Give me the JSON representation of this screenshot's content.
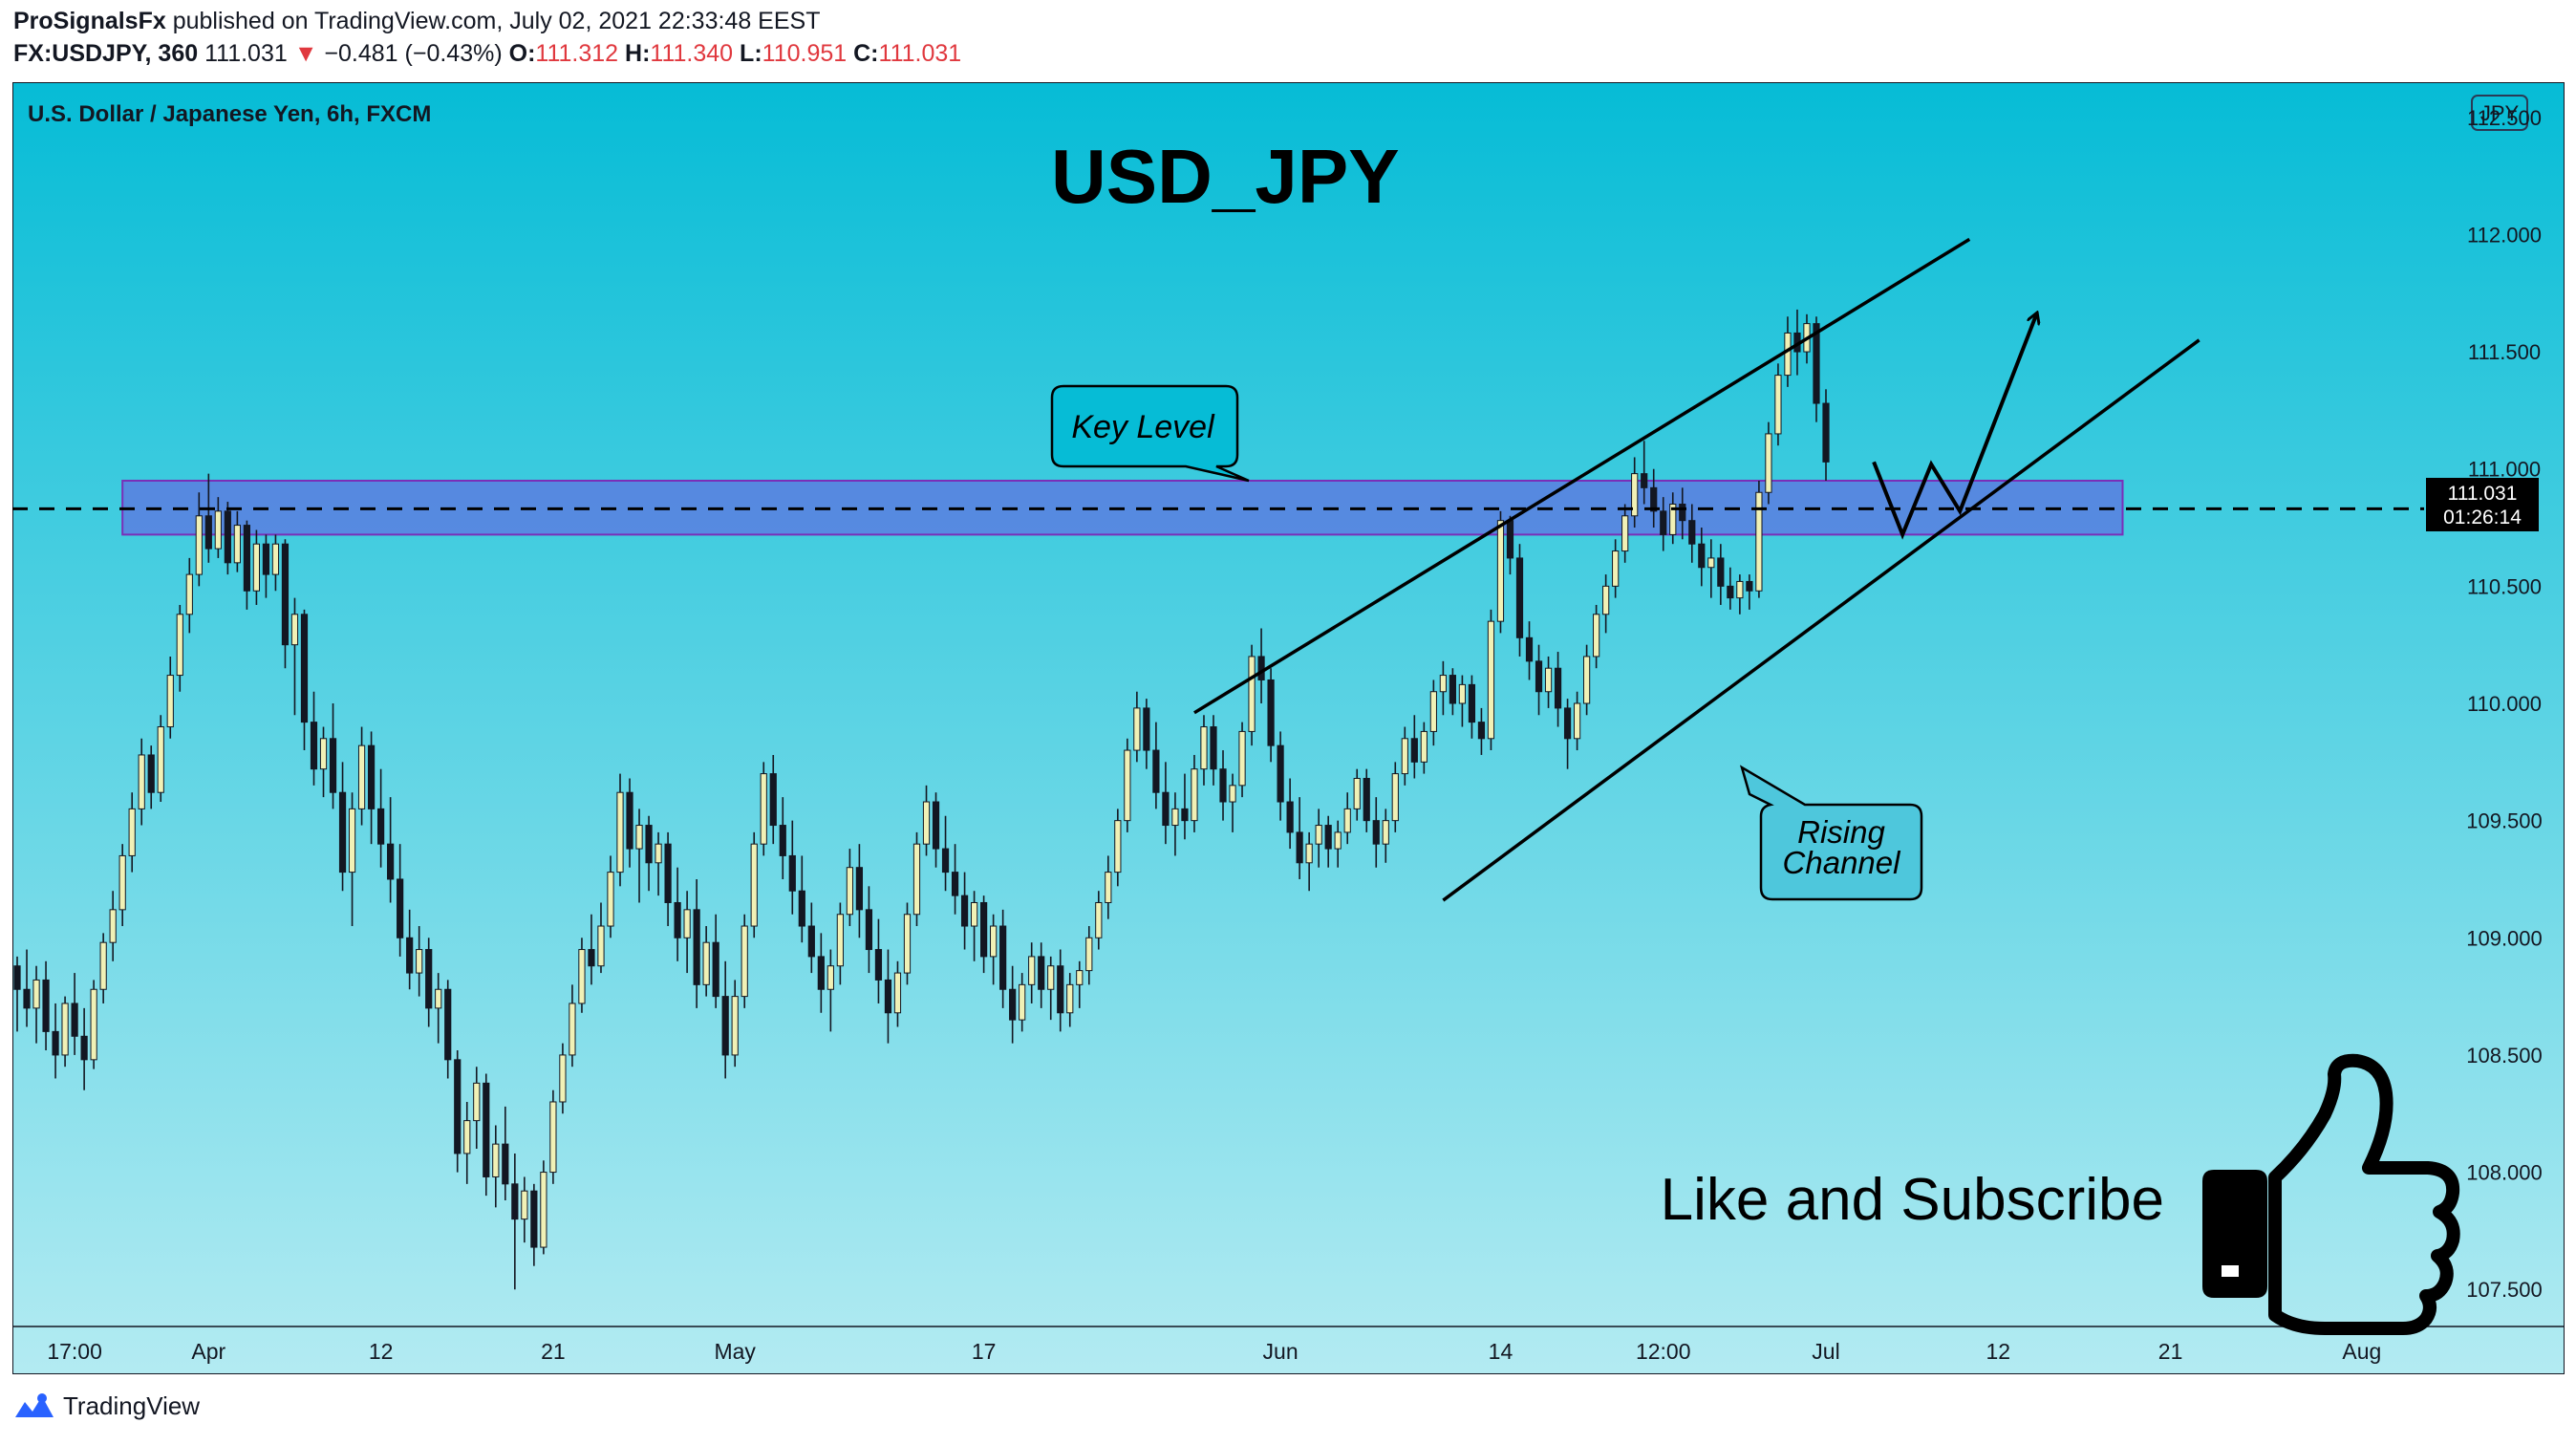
{
  "header": {
    "publisher": "ProSignalsFx",
    "published_text": " published on TradingView.com, July 02, 2021 22:33:48 EEST",
    "symbol": "FX:USDJPY, 360",
    "last": "111.031",
    "change": "−0.481 (−0.43%)",
    "o_label": "O:",
    "o": "111.312",
    "h_label": "H:",
    "h": "111.340",
    "l_label": "L:",
    "l": "110.951",
    "c_label": "C:",
    "c": "111.031"
  },
  "footer": {
    "brand": "TradingView"
  },
  "colors": {
    "bg_top": "#06bcd6",
    "bg_bottom": "#b3ebf2",
    "candle_up": "#f1f1b6",
    "candle_down": "#131722",
    "zone_fill": "#5b7ee0",
    "zone_border": "#7a2fb8"
  },
  "chart_data": {
    "type": "candlestick",
    "symbol_desc": "U.S. Dollar / Japanese Yen, 6h, FXCM",
    "currency_badge": "JPY",
    "title": "USD_JPY",
    "y_ticks": [
      "112.500",
      "112.000",
      "111.500",
      "111.000",
      "110.500",
      "110.000",
      "109.500",
      "109.000",
      "108.500",
      "108.000",
      "107.500"
    ],
    "ylim": [
      107.35,
      112.65
    ],
    "x_ticks": [
      {
        "label": "17:00",
        "i": 6
      },
      {
        "label": "Apr",
        "i": 20
      },
      {
        "label": "12",
        "i": 38
      },
      {
        "label": "21",
        "i": 56
      },
      {
        "label": "May",
        "i": 75
      },
      {
        "label": "17",
        "i": 101
      },
      {
        "label": "Jun",
        "i": 132
      },
      {
        "label": "14",
        "i": 155
      },
      {
        "label": "12:00",
        "i": 172
      },
      {
        "label": "Jul",
        "i": 189
      },
      {
        "label": "12",
        "i": 207
      },
      {
        "label": "21",
        "i": 225
      },
      {
        "label": "Aug",
        "i": 245
      }
    ],
    "x_count": 252,
    "last_price": "111.031",
    "countdown": "01:26:14",
    "key_level": {
      "price": 110.83,
      "from_i": 11,
      "to_i": 220,
      "top": 110.95,
      "bottom": 110.72,
      "label": "Key Level"
    },
    "channel": {
      "upper": [
        [
          123,
          109.96
        ],
        [
          204,
          111.98
        ]
      ],
      "lower": [
        [
          149,
          109.16
        ],
        [
          228,
          111.55
        ]
      ],
      "label": "Rising Channel"
    },
    "projection": [
      [
        194,
        111.03
      ],
      [
        197,
        110.72
      ],
      [
        200,
        111.02
      ],
      [
        203,
        110.82
      ],
      [
        211,
        111.66
      ]
    ],
    "ohlc": [
      [
        108.88,
        108.92,
        108.6,
        108.78
      ],
      [
        108.78,
        108.95,
        108.62,
        108.7
      ],
      [
        108.7,
        108.88,
        108.55,
        108.82
      ],
      [
        108.82,
        108.9,
        108.52,
        108.6
      ],
      [
        108.6,
        108.72,
        108.4,
        108.5
      ],
      [
        108.5,
        108.75,
        108.45,
        108.72
      ],
      [
        108.72,
        108.85,
        108.5,
        108.58
      ],
      [
        108.58,
        108.7,
        108.35,
        108.48
      ],
      [
        108.48,
        108.82,
        108.44,
        108.78
      ],
      [
        108.78,
        109.02,
        108.72,
        108.98
      ],
      [
        108.98,
        109.2,
        108.9,
        109.12
      ],
      [
        109.12,
        109.4,
        109.05,
        109.35
      ],
      [
        109.35,
        109.62,
        109.28,
        109.55
      ],
      [
        109.55,
        109.85,
        109.48,
        109.78
      ],
      [
        109.78,
        109.82,
        109.55,
        109.62
      ],
      [
        109.62,
        109.95,
        109.58,
        109.9
      ],
      [
        109.9,
        110.2,
        109.85,
        110.12
      ],
      [
        110.12,
        110.42,
        110.05,
        110.38
      ],
      [
        110.38,
        110.62,
        110.3,
        110.55
      ],
      [
        110.55,
        110.9,
        110.5,
        110.8
      ],
      [
        110.8,
        110.98,
        110.6,
        110.66
      ],
      [
        110.66,
        110.88,
        110.62,
        110.82
      ],
      [
        110.82,
        110.86,
        110.55,
        110.6
      ],
      [
        110.6,
        110.82,
        110.56,
        110.76
      ],
      [
        110.76,
        110.78,
        110.4,
        110.48
      ],
      [
        110.48,
        110.74,
        110.42,
        110.68
      ],
      [
        110.68,
        110.72,
        110.45,
        110.55
      ],
      [
        110.55,
        110.72,
        110.48,
        110.68
      ],
      [
        110.68,
        110.7,
        110.15,
        110.25
      ],
      [
        110.25,
        110.45,
        109.95,
        110.38
      ],
      [
        110.38,
        110.4,
        109.8,
        109.92
      ],
      [
        109.92,
        110.05,
        109.65,
        109.72
      ],
      [
        109.72,
        109.9,
        109.6,
        109.85
      ],
      [
        109.85,
        110.0,
        109.55,
        109.62
      ],
      [
        109.62,
        109.75,
        109.2,
        109.28
      ],
      [
        109.28,
        109.62,
        109.05,
        109.55
      ],
      [
        109.55,
        109.9,
        109.48,
        109.82
      ],
      [
        109.82,
        109.88,
        109.4,
        109.55
      ],
      [
        109.55,
        109.72,
        109.3,
        109.4
      ],
      [
        109.4,
        109.6,
        109.15,
        109.25
      ],
      [
        109.25,
        109.4,
        108.92,
        109.0
      ],
      [
        109.0,
        109.12,
        108.78,
        108.85
      ],
      [
        108.85,
        109.05,
        108.75,
        108.95
      ],
      [
        108.95,
        109.0,
        108.62,
        108.7
      ],
      [
        108.7,
        108.85,
        108.55,
        108.78
      ],
      [
        108.78,
        108.82,
        108.4,
        108.48
      ],
      [
        108.48,
        108.52,
        108.0,
        108.08
      ],
      [
        108.08,
        108.3,
        107.95,
        108.22
      ],
      [
        108.22,
        108.45,
        108.1,
        108.38
      ],
      [
        108.38,
        108.42,
        107.9,
        107.98
      ],
      [
        107.98,
        108.2,
        107.85,
        108.12
      ],
      [
        108.12,
        108.28,
        107.88,
        107.95
      ],
      [
        107.95,
        108.08,
        107.5,
        107.8
      ],
      [
        107.8,
        107.98,
        107.7,
        107.92
      ],
      [
        107.92,
        107.95,
        107.6,
        107.68
      ],
      [
        107.68,
        108.05,
        107.65,
        108.0
      ],
      [
        108.0,
        108.35,
        107.95,
        108.3
      ],
      [
        108.3,
        108.55,
        108.25,
        108.5
      ],
      [
        108.5,
        108.8,
        108.45,
        108.72
      ],
      [
        108.72,
        109.0,
        108.68,
        108.95
      ],
      [
        108.95,
        109.1,
        108.8,
        108.88
      ],
      [
        108.88,
        109.15,
        108.85,
        109.05
      ],
      [
        109.05,
        109.35,
        109.0,
        109.28
      ],
      [
        109.28,
        109.7,
        109.22,
        109.62
      ],
      [
        109.62,
        109.68,
        109.3,
        109.38
      ],
      [
        109.38,
        109.55,
        109.15,
        109.48
      ],
      [
        109.48,
        109.52,
        109.2,
        109.32
      ],
      [
        109.32,
        109.45,
        109.18,
        109.4
      ],
      [
        109.4,
        109.45,
        109.05,
        109.15
      ],
      [
        109.15,
        109.3,
        108.9,
        109.0
      ],
      [
        109.0,
        109.2,
        108.85,
        109.12
      ],
      [
        109.12,
        109.25,
        108.7,
        108.8
      ],
      [
        108.8,
        109.05,
        108.75,
        108.98
      ],
      [
        108.98,
        109.1,
        108.7,
        108.75
      ],
      [
        108.75,
        108.9,
        108.4,
        108.5
      ],
      [
        108.5,
        108.82,
        108.45,
        108.75
      ],
      [
        108.75,
        109.1,
        108.7,
        109.05
      ],
      [
        109.05,
        109.45,
        109.0,
        109.4
      ],
      [
        109.4,
        109.75,
        109.35,
        109.7
      ],
      [
        109.7,
        109.78,
        109.4,
        109.48
      ],
      [
        109.48,
        109.6,
        109.25,
        109.35
      ],
      [
        109.35,
        109.5,
        109.1,
        109.2
      ],
      [
        109.2,
        109.35,
        108.98,
        109.05
      ],
      [
        109.05,
        109.15,
        108.85,
        108.92
      ],
      [
        108.92,
        109.02,
        108.68,
        108.78
      ],
      [
        108.78,
        108.95,
        108.6,
        108.88
      ],
      [
        108.88,
        109.15,
        108.8,
        109.1
      ],
      [
        109.1,
        109.38,
        109.05,
        109.3
      ],
      [
        109.3,
        109.4,
        109.0,
        109.12
      ],
      [
        109.12,
        109.22,
        108.85,
        108.95
      ],
      [
        108.95,
        109.08,
        108.72,
        108.82
      ],
      [
        108.82,
        108.95,
        108.55,
        108.68
      ],
      [
        108.68,
        108.9,
        108.62,
        108.85
      ],
      [
        108.85,
        109.15,
        108.8,
        109.1
      ],
      [
        109.1,
        109.45,
        109.05,
        109.4
      ],
      [
        109.4,
        109.65,
        109.35,
        109.58
      ],
      [
        109.58,
        109.62,
        109.3,
        109.38
      ],
      [
        109.38,
        109.52,
        109.2,
        109.28
      ],
      [
        109.28,
        109.4,
        109.1,
        109.18
      ],
      [
        109.18,
        109.28,
        108.95,
        109.05
      ],
      [
        109.05,
        109.2,
        108.9,
        109.15
      ],
      [
        109.15,
        109.18,
        108.85,
        108.92
      ],
      [
        108.92,
        109.1,
        108.8,
        109.05
      ],
      [
        109.05,
        109.12,
        108.7,
        108.78
      ],
      [
        108.78,
        108.88,
        108.55,
        108.65
      ],
      [
        108.65,
        108.85,
        108.6,
        108.8
      ],
      [
        108.8,
        108.98,
        108.72,
        108.92
      ],
      [
        108.92,
        108.98,
        108.7,
        108.78
      ],
      [
        108.78,
        108.92,
        108.65,
        108.88
      ],
      [
        108.88,
        108.95,
        108.6,
        108.68
      ],
      [
        108.68,
        108.85,
        108.62,
        108.8
      ],
      [
        108.8,
        108.9,
        108.7,
        108.86
      ],
      [
        108.86,
        109.05,
        108.8,
        109.0
      ],
      [
        109.0,
        109.2,
        108.95,
        109.15
      ],
      [
        109.15,
        109.35,
        109.08,
        109.28
      ],
      [
        109.28,
        109.55,
        109.22,
        109.5
      ],
      [
        109.5,
        109.85,
        109.45,
        109.8
      ],
      [
        109.8,
        110.05,
        109.75,
        109.98
      ],
      [
        109.98,
        110.02,
        109.72,
        109.8
      ],
      [
        109.8,
        109.92,
        109.55,
        109.62
      ],
      [
        109.62,
        109.75,
        109.4,
        109.48
      ],
      [
        109.48,
        109.62,
        109.35,
        109.55
      ],
      [
        109.55,
        109.7,
        109.42,
        109.5
      ],
      [
        109.5,
        109.78,
        109.45,
        109.72
      ],
      [
        109.72,
        109.95,
        109.65,
        109.9
      ],
      [
        109.9,
        109.95,
        109.65,
        109.72
      ],
      [
        109.72,
        109.8,
        109.5,
        109.58
      ],
      [
        109.58,
        109.7,
        109.45,
        109.65
      ],
      [
        109.65,
        109.92,
        109.6,
        109.88
      ],
      [
        109.88,
        110.25,
        109.82,
        110.2
      ],
      [
        110.2,
        110.32,
        110.0,
        110.1
      ],
      [
        110.1,
        110.15,
        109.75,
        109.82
      ],
      [
        109.82,
        109.88,
        109.5,
        109.58
      ],
      [
        109.58,
        109.68,
        109.38,
        109.45
      ],
      [
        109.45,
        109.6,
        109.25,
        109.32
      ],
      [
        109.32,
        109.45,
        109.2,
        109.4
      ],
      [
        109.4,
        109.55,
        109.3,
        109.48
      ],
      [
        109.48,
        109.52,
        109.3,
        109.38
      ],
      [
        109.38,
        109.5,
        109.3,
        109.45
      ],
      [
        109.45,
        109.62,
        109.4,
        109.55
      ],
      [
        109.55,
        109.72,
        109.5,
        109.68
      ],
      [
        109.68,
        109.72,
        109.45,
        109.5
      ],
      [
        109.5,
        109.6,
        109.3,
        109.4
      ],
      [
        109.4,
        109.55,
        109.32,
        109.5
      ],
      [
        109.5,
        109.75,
        109.45,
        109.7
      ],
      [
        109.7,
        109.9,
        109.65,
        109.85
      ],
      [
        109.85,
        109.95,
        109.68,
        109.75
      ],
      [
        109.75,
        109.92,
        109.7,
        109.88
      ],
      [
        109.88,
        110.1,
        109.82,
        110.05
      ],
      [
        110.05,
        110.18,
        109.95,
        110.12
      ],
      [
        110.12,
        110.15,
        109.95,
        110.0
      ],
      [
        110.0,
        110.12,
        109.9,
        110.08
      ],
      [
        110.08,
        110.12,
        109.85,
        109.92
      ],
      [
        109.92,
        109.98,
        109.78,
        109.85
      ],
      [
        109.85,
        110.4,
        109.8,
        110.35
      ],
      [
        110.35,
        110.82,
        110.3,
        110.78
      ],
      [
        110.78,
        110.8,
        110.55,
        110.62
      ],
      [
        110.62,
        110.68,
        110.2,
        110.28
      ],
      [
        110.28,
        110.35,
        110.1,
        110.18
      ],
      [
        110.18,
        110.25,
        109.95,
        110.05
      ],
      [
        110.05,
        110.2,
        109.98,
        110.15
      ],
      [
        110.15,
        110.22,
        109.9,
        109.98
      ],
      [
        109.98,
        110.02,
        109.72,
        109.85
      ],
      [
        109.85,
        110.05,
        109.8,
        110.0
      ],
      [
        110.0,
        110.25,
        109.95,
        110.2
      ],
      [
        110.2,
        110.42,
        110.15,
        110.38
      ],
      [
        110.38,
        110.55,
        110.3,
        110.5
      ],
      [
        110.5,
        110.7,
        110.45,
        110.65
      ],
      [
        110.65,
        110.85,
        110.6,
        110.8
      ],
      [
        110.8,
        111.05,
        110.75,
        110.98
      ],
      [
        110.98,
        111.12,
        110.85,
        110.92
      ],
      [
        110.92,
        111.0,
        110.75,
        110.82
      ],
      [
        110.82,
        110.88,
        110.65,
        110.72
      ],
      [
        110.72,
        110.9,
        110.68,
        110.85
      ],
      [
        110.85,
        110.92,
        110.7,
        110.78
      ],
      [
        110.78,
        110.85,
        110.6,
        110.68
      ],
      [
        110.68,
        110.75,
        110.5,
        110.58
      ],
      [
        110.58,
        110.7,
        110.45,
        110.62
      ],
      [
        110.62,
        110.68,
        110.42,
        110.5
      ],
      [
        110.5,
        110.58,
        110.4,
        110.45
      ],
      [
        110.45,
        110.55,
        110.38,
        110.52
      ],
      [
        110.52,
        110.55,
        110.4,
        110.48
      ],
      [
        110.48,
        110.95,
        110.45,
        110.9
      ],
      [
        110.9,
        111.2,
        110.85,
        111.15
      ],
      [
        111.15,
        111.45,
        111.1,
        111.4
      ],
      [
        111.4,
        111.65,
        111.35,
        111.58
      ],
      [
        111.58,
        111.68,
        111.4,
        111.5
      ],
      [
        111.5,
        111.66,
        111.45,
        111.62
      ],
      [
        111.62,
        111.65,
        111.2,
        111.28
      ],
      [
        111.28,
        111.34,
        110.95,
        111.03
      ]
    ]
  },
  "annotations": {
    "cta_text": "Like and Subscribe",
    "key_level_label": "Key Level",
    "channel_label_1": "Rising",
    "channel_label_2": "Channel"
  }
}
